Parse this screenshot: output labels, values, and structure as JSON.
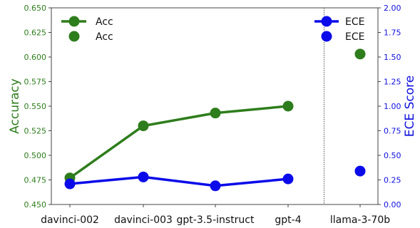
{
  "chart_data": {
    "type": "line",
    "categories": [
      "davinci-002",
      "davinci-003",
      "gpt-3.5-instruct",
      "gpt-4",
      "llama-3-70b"
    ],
    "series": [
      {
        "name": "Acc",
        "axis": "left",
        "color": "#2e7d1c",
        "connected_values": [
          0.477,
          0.53,
          0.543,
          0.55
        ],
        "marker_only_values": [
          0.603
        ]
      },
      {
        "name": "ECE",
        "axis": "right",
        "color": "#0b0bea",
        "connected_values": [
          0.21,
          0.28,
          0.19,
          0.26
        ],
        "marker_only_values": [
          0.34
        ]
      }
    ],
    "ylabel": "Accuracy",
    "ylabel_right": "ECE Score",
    "ylim": [
      0.45,
      0.65
    ],
    "ylim_right": [
      0.0,
      2.0
    ],
    "yticks": [
      "0.450",
      "0.475",
      "0.500",
      "0.525",
      "0.550",
      "0.575",
      "0.600",
      "0.625",
      "0.650"
    ],
    "yticks_right": [
      "0.00",
      "0.25",
      "0.50",
      "0.75",
      "1.00",
      "1.25",
      "1.50",
      "1.75",
      "2.00"
    ],
    "separator_between": [
      "gpt-4",
      "llama-3-70b"
    ],
    "legend_left": {
      "placement": "top-left",
      "entries": [
        "Acc",
        "Acc"
      ]
    },
    "legend_right": {
      "placement": "top-right",
      "entries": [
        "ECE",
        "ECE"
      ]
    },
    "grid": false
  }
}
